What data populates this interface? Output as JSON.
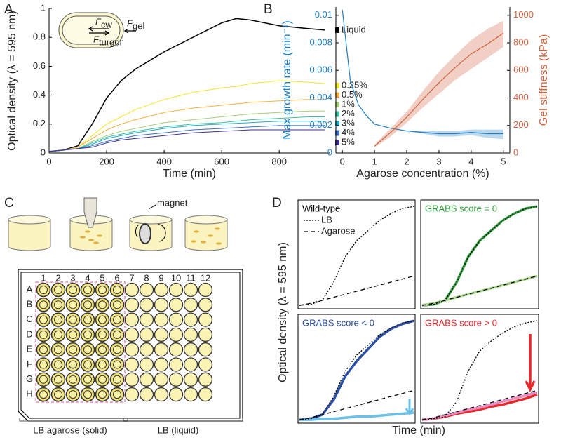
{
  "panel_labels": [
    "A",
    "B",
    "C",
    "D"
  ],
  "chart_data": [
    {
      "type": "line",
      "xlabel": "Time (min)",
      "ylabel": "Optical density (λ = 595 nm)",
      "x": [
        0,
        50,
        100,
        150,
        200,
        250,
        300,
        400,
        500,
        600,
        650,
        700,
        800,
        900,
        960
      ],
      "xlim": [
        0,
        975
      ],
      "xticks": [
        0,
        200,
        400,
        600,
        800
      ],
      "ylim": [
        0,
        1
      ],
      "yticks": [
        0,
        0.2,
        0.4,
        0.6,
        0.8,
        1
      ],
      "legend": "right",
      "inset_labels": [
        {
          "text": "F",
          "sub": "cw"
        },
        {
          "text": "F",
          "sub": "gel"
        },
        {
          "text": "F",
          "sub": "turgor"
        }
      ],
      "series": [
        {
          "name": "Liquid",
          "color": "#000000",
          "values": [
            0.01,
            0.02,
            0.05,
            0.2,
            0.38,
            0.5,
            0.58,
            0.7,
            0.8,
            0.9,
            0.93,
            0.92,
            0.88,
            0.86,
            0.85
          ]
        },
        {
          "name": "0.25%",
          "color": "#f2e62a",
          "values": [
            0.01,
            0.02,
            0.04,
            0.12,
            0.2,
            0.25,
            0.3,
            0.37,
            0.42,
            0.45,
            0.46,
            0.48,
            0.5,
            0.49,
            0.48
          ]
        },
        {
          "name": "0.5%",
          "color": "#f5b040",
          "values": [
            0.01,
            0.02,
            0.04,
            0.1,
            0.16,
            0.2,
            0.23,
            0.28,
            0.31,
            0.33,
            0.34,
            0.35,
            0.36,
            0.37,
            0.37
          ]
        },
        {
          "name": "1%",
          "color": "#a6d17a",
          "values": [
            0.01,
            0.02,
            0.03,
            0.08,
            0.12,
            0.15,
            0.17,
            0.21,
            0.23,
            0.25,
            0.26,
            0.27,
            0.28,
            0.29,
            0.29
          ]
        },
        {
          "name": "2%",
          "color": "#3fbf9f",
          "values": [
            0.01,
            0.02,
            0.03,
            0.07,
            0.11,
            0.13,
            0.15,
            0.18,
            0.2,
            0.21,
            0.22,
            0.23,
            0.24,
            0.25,
            0.25
          ]
        },
        {
          "name": "3%",
          "color": "#2aa7c9",
          "values": [
            0.01,
            0.02,
            0.03,
            0.06,
            0.1,
            0.12,
            0.14,
            0.17,
            0.19,
            0.2,
            0.205,
            0.21,
            0.22,
            0.22,
            0.22
          ]
        },
        {
          "name": "4%",
          "color": "#3a6fc0",
          "values": [
            0.01,
            0.02,
            0.03,
            0.05,
            0.08,
            0.1,
            0.12,
            0.14,
            0.16,
            0.17,
            0.175,
            0.18,
            0.19,
            0.19,
            0.19
          ]
        },
        {
          "name": "5%",
          "color": "#3a2f8f",
          "values": [
            0.01,
            0.02,
            0.03,
            0.04,
            0.07,
            0.09,
            0.1,
            0.12,
            0.14,
            0.15,
            0.155,
            0.16,
            0.16,
            0.16,
            0.16
          ]
        }
      ]
    },
    {
      "type": "line",
      "xlabel": "Agarose concentration (%)",
      "ylabel": "Max growth rate (min⁻¹)",
      "y2label": "Gel stiffness (kPa)",
      "x": [
        0,
        0.25,
        0.5,
        0.75,
        1,
        1.5,
        2,
        2.5,
        3,
        3.5,
        4,
        4.5,
        5
      ],
      "xlim": [
        -0.2,
        5.2
      ],
      "xticks": [
        0,
        1,
        2,
        3,
        4,
        5
      ],
      "ylim": [
        0,
        0.0106
      ],
      "yticks": [
        0,
        0.002,
        0.004,
        0.006,
        0.008,
        0.01
      ],
      "y2lim": [
        0,
        1060
      ],
      "y2ticks": [
        0,
        200,
        400,
        600,
        800,
        1000
      ],
      "series": [
        {
          "color": "#1f7fc4",
          "values": [
            0.0104,
            0.0052,
            0.0035,
            0.0027,
            0.0021,
            0.0018,
            0.0016,
            0.0015,
            0.0014,
            0.0014,
            0.0015,
            0.0014,
            0.0014
          ],
          "lower": [
            0.0104,
            0.0052,
            0.0035,
            0.0027,
            0.0021,
            0.0018,
            0.0016,
            0.0014,
            0.0012,
            0.0012,
            0.0013,
            0.0011,
            0.001
          ],
          "upper": [
            0.0104,
            0.0052,
            0.0035,
            0.0027,
            0.0021,
            0.0018,
            0.0016,
            0.0016,
            0.0016,
            0.0016,
            0.0017,
            0.0017,
            0.0017
          ]
        },
        {
          "color": "#d0603c",
          "axis": "y2",
          "values": [
            null,
            null,
            null,
            null,
            50,
            150,
            260,
            390,
            510,
            620,
            720,
            790,
            870
          ],
          "lower": [
            null,
            null,
            null,
            null,
            40,
            120,
            220,
            330,
            430,
            530,
            610,
            690,
            770
          ],
          "upper": [
            null,
            null,
            null,
            null,
            60,
            180,
            300,
            450,
            590,
            710,
            820,
            900,
            960
          ]
        }
      ]
    },
    {
      "type": "line",
      "title": "Wild-type",
      "x": [
        0,
        1,
        2,
        3,
        4,
        5,
        6,
        7,
        8,
        9,
        10
      ],
      "xlim": [
        0,
        10
      ],
      "ylim": [
        0,
        1.05
      ],
      "series": [
        {
          "name": "LB",
          "color": "#000000",
          "dash": "dotted",
          "values": [
            0.02,
            0.03,
            0.07,
            0.25,
            0.5,
            0.66,
            0.76,
            0.86,
            0.93,
            0.98,
            1.0
          ]
        },
        {
          "name": "Agarose",
          "color": "#000000",
          "dash": "dashed",
          "values": [
            0.02,
            0.04,
            0.07,
            0.1,
            0.13,
            0.16,
            0.19,
            0.22,
            0.25,
            0.28,
            0.31
          ]
        }
      ]
    },
    {
      "type": "line",
      "title": "GRABS score = 0",
      "x": [
        0,
        1,
        2,
        3,
        4,
        5,
        6,
        7,
        8,
        9,
        10
      ],
      "xlim": [
        0,
        10
      ],
      "ylim": [
        0,
        1.05
      ],
      "series": [
        {
          "color": "#2e9e3a",
          "dash": "solid",
          "values": [
            0.02,
            0.03,
            0.07,
            0.25,
            0.5,
            0.66,
            0.76,
            0.86,
            0.93,
            0.98,
            1.0
          ]
        },
        {
          "color": "#a8d88a",
          "dash": "solid",
          "values": [
            0.02,
            0.04,
            0.07,
            0.1,
            0.13,
            0.16,
            0.19,
            0.22,
            0.25,
            0.28,
            0.31
          ]
        },
        {
          "color": "#000000",
          "dash": "dotted",
          "values": [
            0.02,
            0.03,
            0.07,
            0.25,
            0.5,
            0.66,
            0.76,
            0.86,
            0.93,
            0.98,
            1.0
          ]
        },
        {
          "color": "#000000",
          "dash": "dashed",
          "values": [
            0.02,
            0.04,
            0.07,
            0.1,
            0.13,
            0.16,
            0.19,
            0.22,
            0.25,
            0.28,
            0.31
          ]
        }
      ]
    },
    {
      "type": "line",
      "title": "GRABS score < 0",
      "x": [
        0,
        1,
        2,
        3,
        4,
        5,
        6,
        7,
        8,
        9,
        10
      ],
      "xlim": [
        0,
        10
      ],
      "ylim": [
        0,
        1.05
      ],
      "series": [
        {
          "color": "#2c4fa6",
          "dash": "solid",
          "values": [
            0.02,
            0.03,
            0.07,
            0.22,
            0.45,
            0.6,
            0.72,
            0.84,
            0.92,
            0.97,
            1.0
          ]
        },
        {
          "color": "#6cc0e8",
          "dash": "solid",
          "values": [
            0.02,
            0.02,
            0.03,
            0.03,
            0.04,
            0.05,
            0.05,
            0.06,
            0.07,
            0.08,
            0.09
          ]
        },
        {
          "color": "#000000",
          "dash": "dotted",
          "values": [
            0.02,
            0.03,
            0.07,
            0.25,
            0.5,
            0.66,
            0.76,
            0.86,
            0.93,
            0.98,
            1.0
          ]
        },
        {
          "color": "#000000",
          "dash": "dashed",
          "values": [
            0.02,
            0.04,
            0.07,
            0.1,
            0.13,
            0.16,
            0.19,
            0.22,
            0.25,
            0.28,
            0.31
          ]
        }
      ]
    },
    {
      "type": "line",
      "title": "GRABS score > 0",
      "x": [
        0,
        1,
        2,
        3,
        4,
        5,
        6,
        7,
        8,
        9,
        10
      ],
      "xlim": [
        0,
        10
      ],
      "ylim": [
        0,
        1.05
      ],
      "series": [
        {
          "color": "#e8282a",
          "dash": "solid",
          "values": [
            0.02,
            0.03,
            0.05,
            0.08,
            0.1,
            0.12,
            0.15,
            0.17,
            0.2,
            0.23,
            0.27
          ]
        },
        {
          "color": "#e88ac0",
          "dash": "solid",
          "values": [
            0.02,
            0.03,
            0.06,
            0.09,
            0.12,
            0.14,
            0.17,
            0.2,
            0.23,
            0.26,
            0.29
          ]
        },
        {
          "color": "#000000",
          "dash": "dotted",
          "values": [
            0.02,
            0.03,
            0.05,
            0.2,
            0.5,
            0.7,
            0.8,
            0.88,
            0.94,
            0.98,
            1.0
          ]
        },
        {
          "color": "#000000",
          "dash": "dashed",
          "values": [
            0.02,
            0.04,
            0.07,
            0.1,
            0.13,
            0.16,
            0.19,
            0.22,
            0.25,
            0.28,
            0.31
          ]
        }
      ]
    }
  ],
  "panel_d": {
    "ylabel": "Optical density (λ = 595 nm)",
    "xlabel": "Time (min)"
  },
  "plate": {
    "magnet_label": "magnet",
    "rows": [
      "A",
      "B",
      "C",
      "D",
      "E",
      "F",
      "G",
      "H"
    ],
    "columns": [
      "1",
      "2",
      "3",
      "4",
      "5",
      "6",
      "7",
      "8",
      "9",
      "10",
      "11",
      "12"
    ],
    "solid_label": "LB agarose (solid)",
    "liquid_label": "LB (liquid)"
  }
}
